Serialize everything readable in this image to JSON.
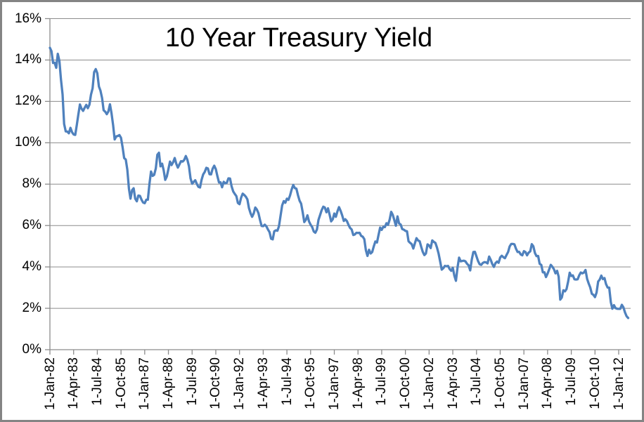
{
  "frame": {
    "border_color": "#848484",
    "background_color": "#ffffff"
  },
  "title": "10 Year Treasury Yield",
  "chart_data": {
    "type": "line",
    "title": "10 Year Treasury Yield",
    "x_start": "Jan-1982",
    "x_end": "Jul-2012",
    "x_frequency": "monthly",
    "unit": "percent",
    "ylim": [
      0,
      16
    ],
    "y_tick_step": 2,
    "y_tick_labels": [
      "0%",
      "2%",
      "4%",
      "6%",
      "8%",
      "10%",
      "12%",
      "14%",
      "16%"
    ],
    "x_tick_labels": [
      "1-Jan-82",
      "1-Apr-83",
      "1-Jul-84",
      "1-Oct-85",
      "1-Jan-87",
      "1-Apr-88",
      "1-Jul-89",
      "1-Oct-90",
      "1-Jan-92",
      "1-Apr-93",
      "1-Jul-94",
      "1-Oct-95",
      "1-Jan-97",
      "1-Apr-98",
      "1-Jul-99",
      "1-Oct-00",
      "1-Jan-02",
      "1-Apr-03",
      "1-Jul-04",
      "1-Oct-05",
      "1-Jan-07",
      "1-Apr-08",
      "1-Jul-09",
      "1-Oct-10",
      "1-Jan-12"
    ],
    "x_tick_month_indices": [
      0,
      15,
      30,
      45,
      60,
      75,
      90,
      105,
      120,
      135,
      150,
      165,
      180,
      195,
      210,
      225,
      240,
      255,
      270,
      285,
      300,
      315,
      330,
      345,
      360
    ],
    "grid": "horizontal",
    "legend": "none",
    "line_color": "#4F81BD",
    "grid_color": "#8C8C8C",
    "axis_color": "#8C8C8C",
    "text_color": "#000000",
    "values": [
      14.59,
      14.43,
      13.86,
      13.87,
      13.62,
      14.3,
      13.95,
      13.06,
      12.34,
      10.91,
      10.55,
      10.54,
      10.46,
      10.72,
      10.51,
      10.4,
      10.38,
      10.85,
      11.38,
      11.85,
      11.65,
      11.54,
      11.69,
      11.83,
      11.67,
      11.84,
      12.32,
      12.63,
      13.41,
      13.56,
      13.36,
      12.72,
      12.52,
      12.16,
      11.57,
      11.5,
      11.38,
      11.51,
      11.86,
      11.43,
      10.85,
      10.16,
      10.31,
      10.33,
      10.37,
      10.24,
      9.78,
      9.26,
      9.19,
      8.7,
      7.78,
      7.3,
      7.71,
      7.8,
      7.3,
      7.17,
      7.45,
      7.43,
      7.25,
      7.11,
      7.08,
      7.25,
      7.25,
      8.02,
      8.61,
      8.4,
      8.45,
      8.76,
      9.42,
      9.52,
      8.86,
      8.99,
      8.67,
      8.21,
      8.37,
      8.72,
      9.09,
      8.92,
      9.06,
      9.26,
      8.98,
      8.8,
      8.96,
      9.11,
      9.09,
      9.17,
      9.36,
      9.18,
      8.86,
      8.28,
      8.02,
      8.11,
      8.19,
      8.01,
      7.87,
      7.84,
      8.21,
      8.47,
      8.59,
      8.79,
      8.76,
      8.48,
      8.47,
      8.75,
      8.89,
      8.72,
      8.39,
      8.08,
      8.09,
      7.85,
      8.11,
      8.04,
      8.07,
      8.28,
      8.27,
      7.9,
      7.65,
      7.53,
      7.42,
      7.09,
      7.03,
      7.34,
      7.54,
      7.48,
      7.39,
      7.26,
      6.84,
      6.59,
      6.42,
      6.59,
      6.87,
      6.77,
      6.6,
      6.26,
      5.98,
      5.97,
      6.04,
      5.96,
      5.81,
      5.68,
      5.36,
      5.33,
      5.72,
      5.77,
      5.75,
      5.97,
      6.48,
      6.97,
      7.18,
      7.1,
      7.3,
      7.24,
      7.46,
      7.74,
      7.96,
      7.81,
      7.78,
      7.47,
      7.2,
      7.06,
      6.63,
      6.17,
      6.28,
      6.49,
      6.2,
      6.04,
      5.93,
      5.71,
      5.65,
      5.81,
      6.27,
      6.51,
      6.74,
      6.91,
      6.87,
      6.64,
      6.83,
      6.53,
      6.2,
      6.3,
      6.58,
      6.42,
      6.69,
      6.89,
      6.71,
      6.49,
      6.22,
      6.3,
      6.21,
      6.03,
      5.88,
      5.81,
      5.54,
      5.57,
      5.65,
      5.64,
      5.65,
      5.5,
      5.46,
      5.34,
      4.81,
      4.53,
      4.83,
      4.65,
      4.72,
      5.0,
      5.23,
      5.18,
      5.54,
      5.9,
      5.79,
      5.94,
      5.92,
      6.11,
      6.03,
      6.28,
      6.66,
      6.52,
      6.26,
      5.99,
      6.44,
      6.1,
      6.05,
      5.83,
      5.8,
      5.74,
      5.72,
      5.24,
      5.16,
      5.1,
      4.89,
      5.14,
      5.39,
      5.28,
      5.24,
      4.97,
      4.73,
      4.57,
      4.65,
      5.09,
      5.04,
      4.91,
      5.28,
      5.21,
      5.16,
      4.93,
      4.65,
      4.26,
      3.87,
      3.94,
      4.05,
      4.03,
      4.05,
      3.9,
      3.81,
      3.96,
      3.57,
      3.33,
      3.98,
      4.45,
      4.27,
      4.29,
      4.3,
      4.27,
      4.15,
      4.08,
      3.83,
      4.35,
      4.72,
      4.73,
      4.5,
      4.28,
      4.13,
      4.1,
      4.19,
      4.23,
      4.22,
      4.17,
      4.5,
      4.34,
      4.14,
      4.0,
      4.18,
      4.26,
      4.2,
      4.46,
      4.54,
      4.47,
      4.42,
      4.57,
      4.72,
      4.99,
      5.11,
      5.11,
      5.09,
      4.88,
      4.72,
      4.73,
      4.6,
      4.56,
      4.76,
      4.72,
      4.56,
      4.69,
      4.75,
      5.1,
      5.0,
      4.67,
      4.52,
      4.53,
      4.15,
      4.1,
      3.74,
      3.74,
      3.51,
      3.68,
      3.88,
      4.1,
      4.01,
      3.89,
      3.69,
      3.81,
      3.53,
      2.42,
      2.52,
      2.87,
      2.82,
      2.93,
      3.29,
      3.72,
      3.56,
      3.59,
      3.4,
      3.39,
      3.4,
      3.59,
      3.73,
      3.69,
      3.73,
      3.85,
      3.42,
      3.2,
      3.01,
      2.7,
      2.65,
      2.54,
      2.76,
      3.29,
      3.39,
      3.58,
      3.41,
      3.46,
      3.17,
      3.0,
      3.0,
      2.3,
      1.98,
      2.15,
      2.01,
      1.98,
      1.97,
      1.97,
      2.17,
      2.05,
      1.8,
      1.62,
      1.53
    ]
  }
}
